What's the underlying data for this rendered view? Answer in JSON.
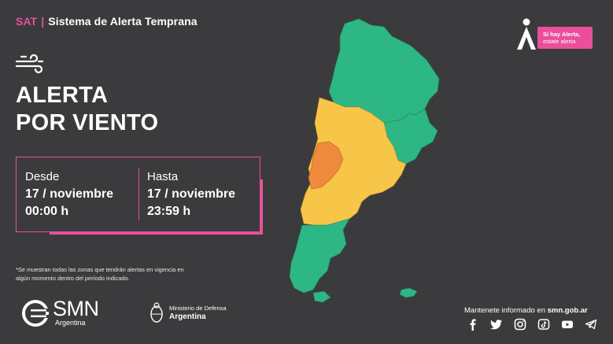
{
  "header": {
    "brand": "SAT",
    "separator": "|",
    "title": "Sistema de Alerta Temprana"
  },
  "title": {
    "line1": "ALERTA",
    "line2": "POR VIENTO"
  },
  "period": {
    "from_label": "Desde",
    "from_date": "17 / noviembre",
    "from_time": "00:00 h",
    "to_label": "Hasta",
    "to_date": "17 / noviembre",
    "to_time": "23:59 h"
  },
  "footnote": "*Se muestran todas las zonas que tendrán alertas en vigencia en algún momento dentro del período indicado.",
  "smn": {
    "name": "SMN",
    "country": "Argentina"
  },
  "ministry": {
    "line1": "Ministerio de Defensa",
    "line2": "Argentina"
  },
  "alert_brand": {
    "line1": "Si hay Alerta,",
    "line2": "estate alerta"
  },
  "info": {
    "prefix": "Mantenete informado en ",
    "site": "smn.gob.ar"
  },
  "social": [
    "facebook-icon",
    "twitter-icon",
    "instagram-icon",
    "tiktok-icon",
    "youtube-icon",
    "telegram-icon"
  ],
  "colors": {
    "accent": "#e94f9b",
    "green": "#2db784",
    "yellow": "#f7c548",
    "orange": "#ef8a3c",
    "background": "#3b3b3d"
  }
}
